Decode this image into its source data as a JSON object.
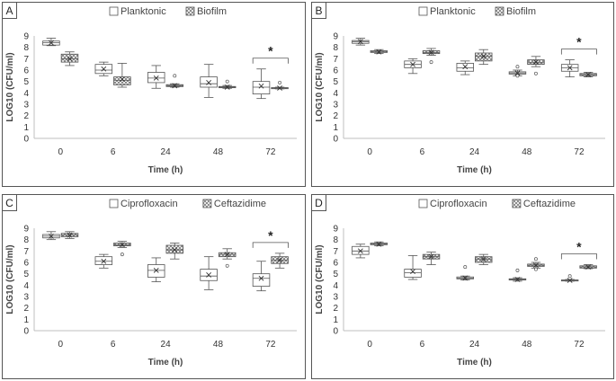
{
  "chart_data": [
    {
      "panel": "A",
      "type": "boxplot",
      "ylabel": "LOG10 (CFU/ml)",
      "xlabel": "Time (h)",
      "ylim": [
        0,
        9
      ],
      "yticks": [
        0,
        1,
        2,
        3,
        4,
        5,
        6,
        7,
        8,
        9
      ],
      "categories": [
        "0",
        "6",
        "24",
        "48",
        "72"
      ],
      "legend": [
        "Planktonic",
        "Biofilm"
      ],
      "significance": {
        "category": "72",
        "label": "*"
      },
      "series": [
        {
          "name": "Planktonic",
          "pattern": "plain",
          "boxes": [
            {
              "x": "0",
              "min": 8.15,
              "q1": 8.2,
              "median": 8.4,
              "q3": 8.55,
              "max": 8.8,
              "mean": 8.4,
              "outliers": []
            },
            {
              "x": "6",
              "min": 5.5,
              "q1": 5.7,
              "median": 6.0,
              "q3": 6.5,
              "max": 6.7,
              "mean": 6.1,
              "outliers": []
            },
            {
              "x": "24",
              "min": 4.4,
              "q1": 4.9,
              "median": 5.3,
              "q3": 5.8,
              "max": 6.4,
              "mean": 5.3,
              "outliers": []
            },
            {
              "x": "48",
              "min": 3.6,
              "q1": 4.5,
              "median": 4.8,
              "q3": 5.4,
              "max": 6.5,
              "mean": 4.9,
              "outliers": []
            },
            {
              "x": "72",
              "min": 3.5,
              "q1": 3.9,
              "median": 4.5,
              "q3": 5.0,
              "max": 6.1,
              "mean": 4.6,
              "outliers": []
            }
          ]
        },
        {
          "name": "Biofilm",
          "pattern": "hatched",
          "boxes": [
            {
              "x": "0",
              "min": 6.4,
              "q1": 6.7,
              "median": 7.0,
              "q3": 7.4,
              "max": 7.6,
              "mean": 7.0,
              "outliers": []
            },
            {
              "x": "6",
              "min": 4.5,
              "q1": 4.7,
              "median": 5.1,
              "q3": 5.4,
              "max": 6.6,
              "mean": 5.2,
              "outliers": []
            },
            {
              "x": "24",
              "min": 4.5,
              "q1": 4.55,
              "median": 4.62,
              "q3": 4.72,
              "max": 4.8,
              "mean": 4.62,
              "outliers": [
                5.5
              ]
            },
            {
              "x": "48",
              "min": 4.4,
              "q1": 4.45,
              "median": 4.5,
              "q3": 4.56,
              "max": 4.65,
              "mean": 4.5,
              "outliers": [
                5.0
              ]
            },
            {
              "x": "72",
              "min": 4.35,
              "q1": 4.38,
              "median": 4.42,
              "q3": 4.46,
              "max": 4.5,
              "mean": 4.42,
              "outliers": [
                4.9
              ]
            }
          ]
        }
      ]
    },
    {
      "panel": "B",
      "type": "boxplot",
      "ylabel": "LOG10 (CFU/ml)",
      "xlabel": "Time (h)",
      "ylim": [
        0,
        9
      ],
      "yticks": [
        0,
        1,
        2,
        3,
        4,
        5,
        6,
        7,
        8,
        9
      ],
      "categories": [
        "0",
        "6",
        "24",
        "48",
        "72"
      ],
      "legend": [
        "Planktonic",
        "Biofilm"
      ],
      "significance": {
        "category": "72",
        "label": "*"
      },
      "series": [
        {
          "name": "Planktonic",
          "pattern": "plain",
          "boxes": [
            {
              "x": "0",
              "min": 8.2,
              "q1": 8.35,
              "median": 8.5,
              "q3": 8.6,
              "max": 8.8,
              "mean": 8.5,
              "outliers": []
            },
            {
              "x": "6",
              "min": 5.7,
              "q1": 6.2,
              "median": 6.5,
              "q3": 6.8,
              "max": 7.0,
              "mean": 6.5,
              "outliers": []
            },
            {
              "x": "24",
              "min": 5.6,
              "q1": 5.9,
              "median": 6.2,
              "q3": 6.6,
              "max": 6.8,
              "mean": 6.3,
              "outliers": []
            },
            {
              "x": "48",
              "min": 5.5,
              "q1": 5.65,
              "median": 5.75,
              "q3": 5.85,
              "max": 6.0,
              "mean": 5.75,
              "outliers": [
                5.5,
                6.3
              ]
            },
            {
              "x": "72",
              "min": 5.4,
              "q1": 5.9,
              "median": 6.2,
              "q3": 6.5,
              "max": 6.9,
              "mean": 6.2,
              "outliers": []
            }
          ]
        },
        {
          "name": "Biofilm",
          "pattern": "hatched",
          "boxes": [
            {
              "x": "0",
              "min": 7.45,
              "q1": 7.55,
              "median": 7.6,
              "q3": 7.7,
              "max": 7.8,
              "mean": 7.6,
              "outliers": []
            },
            {
              "x": "6",
              "min": 7.3,
              "q1": 7.45,
              "median": 7.55,
              "q3": 7.7,
              "max": 7.9,
              "mean": 7.55,
              "outliers": [
                6.7
              ]
            },
            {
              "x": "24",
              "min": 6.5,
              "q1": 6.8,
              "median": 7.2,
              "q3": 7.5,
              "max": 7.8,
              "mean": 7.2,
              "outliers": []
            },
            {
              "x": "48",
              "min": 6.3,
              "q1": 6.5,
              "median": 6.65,
              "q3": 6.9,
              "max": 7.2,
              "mean": 6.7,
              "outliers": [
                5.7
              ]
            },
            {
              "x": "72",
              "min": 5.4,
              "q1": 5.5,
              "median": 5.6,
              "q3": 5.7,
              "max": 5.8,
              "mean": 5.6,
              "outliers": []
            }
          ]
        }
      ]
    },
    {
      "panel": "C",
      "type": "boxplot",
      "ylabel": "LOG10 (CFU/ml)",
      "xlabel": "Time (h)",
      "ylim": [
        0,
        9
      ],
      "yticks": [
        0,
        1,
        2,
        3,
        4,
        5,
        6,
        7,
        8,
        9
      ],
      "categories": [
        "0",
        "6",
        "24",
        "48",
        "72"
      ],
      "legend": [
        "Ciprofloxacin",
        "Ceftazidime"
      ],
      "significance": {
        "category": "72",
        "label": "*"
      },
      "series": [
        {
          "name": "Ciprofloxacin",
          "pattern": "plain",
          "boxes": [
            {
              "x": "0",
              "min": 8.0,
              "q1": 8.15,
              "median": 8.3,
              "q3": 8.45,
              "max": 8.7,
              "mean": 8.3,
              "outliers": []
            },
            {
              "x": "6",
              "min": 5.5,
              "q1": 5.8,
              "median": 6.1,
              "q3": 6.5,
              "max": 6.7,
              "mean": 6.1,
              "outliers": []
            },
            {
              "x": "24",
              "min": 4.3,
              "q1": 4.7,
              "median": 5.3,
              "q3": 5.8,
              "max": 6.4,
              "mean": 5.3,
              "outliers": []
            },
            {
              "x": "48",
              "min": 3.6,
              "q1": 4.4,
              "median": 4.8,
              "q3": 5.4,
              "max": 6.5,
              "mean": 4.9,
              "outliers": []
            },
            {
              "x": "72",
              "min": 3.5,
              "q1": 3.9,
              "median": 4.6,
              "q3": 5.0,
              "max": 6.1,
              "mean": 4.6,
              "outliers": []
            }
          ]
        },
        {
          "name": "Ceftazidime",
          "pattern": "hatched",
          "boxes": [
            {
              "x": "0",
              "min": 8.1,
              "q1": 8.25,
              "median": 8.4,
              "q3": 8.55,
              "max": 8.7,
              "mean": 8.4,
              "outliers": []
            },
            {
              "x": "6",
              "min": 7.3,
              "q1": 7.45,
              "median": 7.55,
              "q3": 7.7,
              "max": 7.85,
              "mean": 7.55,
              "outliers": [
                6.7
              ]
            },
            {
              "x": "24",
              "min": 6.3,
              "q1": 6.8,
              "median": 7.1,
              "q3": 7.5,
              "max": 7.7,
              "mean": 7.1,
              "outliers": []
            },
            {
              "x": "48",
              "min": 6.3,
              "q1": 6.5,
              "median": 6.7,
              "q3": 6.85,
              "max": 7.2,
              "mean": 6.7,
              "outliers": [
                5.7
              ]
            },
            {
              "x": "72",
              "min": 5.5,
              "q1": 5.9,
              "median": 6.2,
              "q3": 6.5,
              "max": 6.8,
              "mean": 6.2,
              "outliers": []
            }
          ]
        }
      ]
    },
    {
      "panel": "D",
      "type": "boxplot",
      "ylabel": "LOG10 (CFU/ml)",
      "xlabel": "Time (h)",
      "ylim": [
        0,
        9
      ],
      "yticks": [
        0,
        1,
        2,
        3,
        4,
        5,
        6,
        7,
        8,
        9
      ],
      "categories": [
        "0",
        "6",
        "24",
        "48",
        "72"
      ],
      "legend": [
        "Ciprofloxacin",
        "Ceftazidime"
      ],
      "significance": {
        "category": "72",
        "label": "*"
      },
      "series": [
        {
          "name": "Ciprofloxacin",
          "pattern": "plain",
          "boxes": [
            {
              "x": "0",
              "min": 6.4,
              "q1": 6.7,
              "median": 7.0,
              "q3": 7.4,
              "max": 7.6,
              "mean": 7.0,
              "outliers": []
            },
            {
              "x": "6",
              "min": 4.5,
              "q1": 4.7,
              "median": 5.1,
              "q3": 5.4,
              "max": 6.6,
              "mean": 5.2,
              "outliers": []
            },
            {
              "x": "24",
              "min": 4.45,
              "q1": 4.55,
              "median": 4.62,
              "q3": 4.72,
              "max": 4.8,
              "mean": 4.62,
              "outliers": [
                5.6
              ]
            },
            {
              "x": "48",
              "min": 4.35,
              "q1": 4.45,
              "median": 4.5,
              "q3": 4.56,
              "max": 4.65,
              "mean": 4.5,
              "outliers": [
                5.3
              ]
            },
            {
              "x": "72",
              "min": 4.35,
              "q1": 4.38,
              "median": 4.42,
              "q3": 4.46,
              "max": 4.5,
              "mean": 4.42,
              "outliers": [
                4.8
              ]
            }
          ]
        },
        {
          "name": "Ceftazidime",
          "pattern": "hatched",
          "boxes": [
            {
              "x": "0",
              "min": 7.45,
              "q1": 7.55,
              "median": 7.6,
              "q3": 7.7,
              "max": 7.8,
              "mean": 7.6,
              "outliers": []
            },
            {
              "x": "6",
              "min": 5.8,
              "q1": 6.3,
              "median": 6.5,
              "q3": 6.7,
              "max": 6.9,
              "mean": 6.5,
              "outliers": []
            },
            {
              "x": "24",
              "min": 5.8,
              "q1": 6.0,
              "median": 6.3,
              "q3": 6.5,
              "max": 6.7,
              "mean": 6.3,
              "outliers": []
            },
            {
              "x": "48",
              "min": 5.5,
              "q1": 5.65,
              "median": 5.75,
              "q3": 5.85,
              "max": 6.0,
              "mean": 5.75,
              "outliers": [
                5.4,
                6.3
              ]
            },
            {
              "x": "72",
              "min": 5.45,
              "q1": 5.5,
              "median": 5.6,
              "q3": 5.7,
              "max": 5.8,
              "mean": 5.6,
              "outliers": []
            }
          ]
        }
      ]
    }
  ],
  "colors": {
    "border": "#555555",
    "box_stroke": "#555555",
    "axis": "#bfbfbf",
    "hatch": "#777777",
    "text": "#333333"
  }
}
